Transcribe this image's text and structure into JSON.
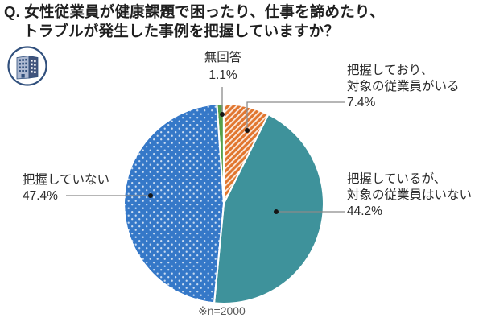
{
  "header": {
    "title_line1": "Q. 女性従業員が健康課題で困ったり、仕事を諦めたり、",
    "title_line2": "トラブルが発生した事例を把握していますか？"
  },
  "note": "※n=2000",
  "icons": {
    "building": "building-in-circle"
  },
  "colors": {
    "no_answer_green": "#55a04a",
    "aware_with_orange": "#e1762f",
    "aware_without_teal": "#3e929b",
    "not_aware_blue": "#3578c8",
    "leader_line": "#8a8a8a",
    "leader_dot": "#151515",
    "note_gray": "#5a5a5a"
  },
  "chart_data": {
    "type": "pie",
    "title": "女性従業員が健康課題で困ったり、仕事を諦めたり、トラブルが発生した事例を把握していますか？",
    "sample_note": "※n=2000",
    "start_angle_deg": -4,
    "direction": "clockwise",
    "legend_position": "outside-callouts",
    "slices": [
      {
        "key": "no-answer",
        "label": "無回答",
        "label_lines": [
          "無回答"
        ],
        "value": 1.1,
        "pct_label": "1.1%",
        "color": "#55a04a",
        "pattern": "solid"
      },
      {
        "key": "aware-with-employees",
        "label": "把握しており、対象の従業員がいる",
        "label_lines": [
          "把握しており、",
          "対象の従業員がいる"
        ],
        "value": 7.4,
        "pct_label": "7.4%",
        "color": "#e1762f",
        "pattern": "diagonal-stripes"
      },
      {
        "key": "aware-no-employees",
        "label": "把握しているが、対象の従業員はいない",
        "label_lines": [
          "把握しているが、",
          "対象の従業員はいない"
        ],
        "value": 44.2,
        "pct_label": "44.2%",
        "color": "#3e929b",
        "pattern": "solid"
      },
      {
        "key": "not-aware",
        "label": "把握していない",
        "label_lines": [
          "把握していない"
        ],
        "value": 47.4,
        "pct_label": "47.4%",
        "color": "#3578c8",
        "pattern": "dots"
      }
    ]
  }
}
